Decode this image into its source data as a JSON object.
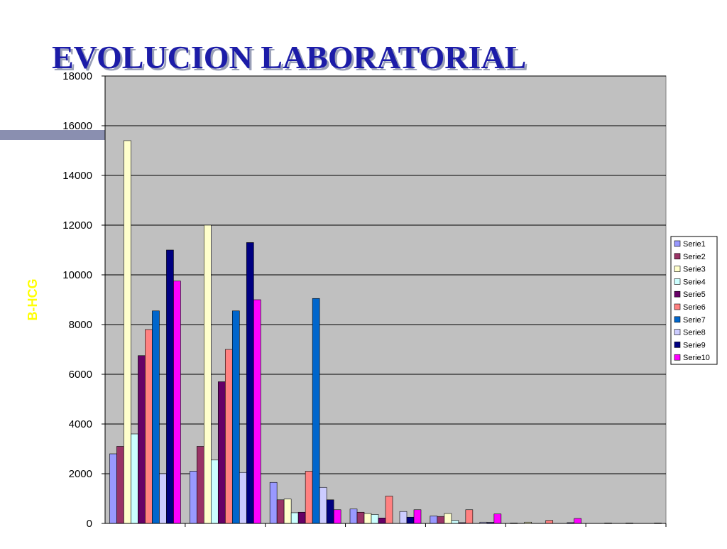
{
  "chart_data": {
    "type": "bar",
    "title": "EVOLUCION LABORATORIAL",
    "y_label": "B-HCG",
    "categories": [
      null,
      null,
      null,
      null,
      null,
      null,
      null
    ],
    "series": [
      {
        "name": "Serie1",
        "color": "#9999ff",
        "values": [
          2800,
          2100,
          1650,
          580,
          300,
          20,
          0
        ]
      },
      {
        "name": "Serie2",
        "color": "#993366",
        "values": [
          3100,
          3100,
          950,
          450,
          280,
          0,
          0
        ]
      },
      {
        "name": "Serie3",
        "color": "#ffffcc",
        "values": [
          15400,
          12000,
          980,
          400,
          400,
          50,
          20
        ]
      },
      {
        "name": "Serie4",
        "color": "#ccffff",
        "values": [
          3600,
          2550,
          430,
          360,
          120,
          0,
          0
        ]
      },
      {
        "name": "Serie5",
        "color": "#660066",
        "values": [
          6750,
          5700,
          450,
          220,
          30,
          0,
          0
        ]
      },
      {
        "name": "Serie6",
        "color": "#ff8080",
        "values": [
          7800,
          7000,
          2100,
          1100,
          550,
          120,
          20
        ]
      },
      {
        "name": "Serie7",
        "color": "#0066cc",
        "values": [
          8550,
          8550,
          9050,
          0,
          0,
          0,
          0
        ]
      },
      {
        "name": "Serie8",
        "color": "#ccccff",
        "values": [
          2000,
          2050,
          1450,
          480,
          50,
          0,
          0
        ]
      },
      {
        "name": "Serie9",
        "color": "#000080",
        "values": [
          11000,
          11300,
          950,
          250,
          40,
          30,
          0
        ]
      },
      {
        "name": "Serie10",
        "color": "#ff00ff",
        "values": [
          9750,
          9000,
          550,
          550,
          380,
          200,
          20
        ]
      }
    ],
    "ylim": [
      0,
      18000
    ],
    "yticks": [
      0,
      2000,
      4000,
      6000,
      8000,
      10000,
      12000,
      14000,
      16000,
      18000
    ],
    "grid": true,
    "legend": "right"
  }
}
